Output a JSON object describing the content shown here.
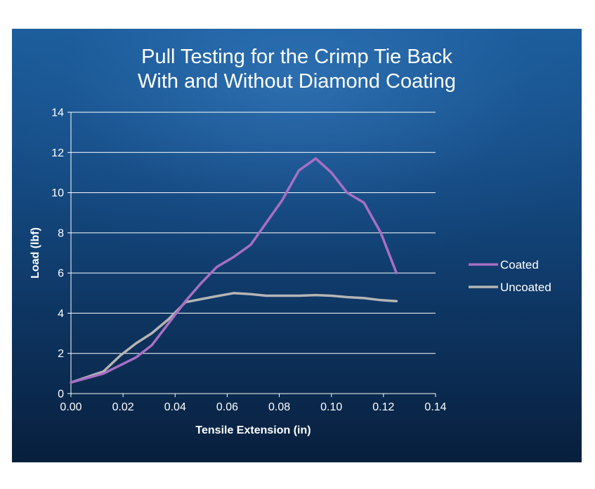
{
  "chart_data": {
    "type": "line",
    "title": [
      "Pull Testing for the Crimp Tie Back",
      "With and Without Diamond Coating"
    ],
    "xlabel": "Tensile Extension (in)",
    "ylabel": "Load (lbf)",
    "xlim": [
      0,
      0.14
    ],
    "ylim": [
      0,
      14
    ],
    "x_ticks": [
      "0.00",
      "0.02",
      "0.04",
      "0.06",
      "0.08",
      "0.10",
      "0.12",
      "0.14"
    ],
    "y_ticks": [
      "0",
      "2",
      "4",
      "6",
      "8",
      "10",
      "12",
      "14"
    ],
    "grid": "horizontal",
    "legend_position": "right",
    "series": [
      {
        "name": "Coated",
        "color": "#a86fc4",
        "x": [
          0.0,
          0.0125,
          0.025,
          0.031,
          0.0375,
          0.044,
          0.05,
          0.056,
          0.0625,
          0.069,
          0.075,
          0.081,
          0.0875,
          0.094,
          0.1,
          0.106,
          0.1125,
          0.119,
          0.125
        ],
        "y": [
          0.55,
          1.0,
          1.8,
          2.4,
          3.5,
          4.6,
          5.5,
          6.3,
          6.8,
          7.4,
          8.5,
          9.6,
          11.1,
          11.7,
          11.0,
          10.0,
          9.5,
          8.0,
          6.0
        ]
      },
      {
        "name": "Uncoated",
        "color": "#b5b5b5",
        "x": [
          0.0,
          0.0125,
          0.019,
          0.025,
          0.031,
          0.0375,
          0.044,
          0.05,
          0.056,
          0.0625,
          0.069,
          0.075,
          0.081,
          0.0875,
          0.094,
          0.1,
          0.106,
          0.1125,
          0.119,
          0.125
        ],
        "y": [
          0.55,
          1.1,
          1.9,
          2.5,
          3.0,
          3.7,
          4.55,
          4.7,
          4.85,
          5.0,
          4.95,
          4.87,
          4.87,
          4.87,
          4.9,
          4.87,
          4.8,
          4.75,
          4.65,
          4.6
        ]
      }
    ]
  }
}
